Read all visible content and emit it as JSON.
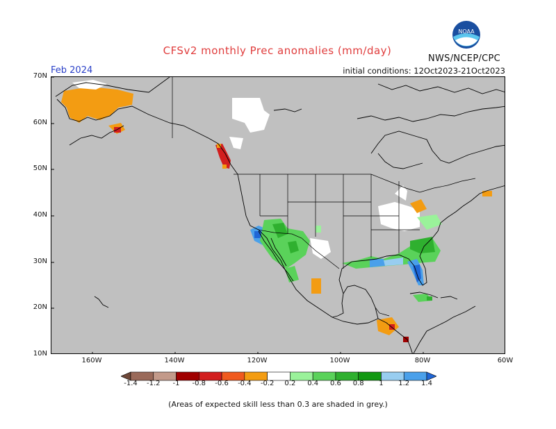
{
  "title": "CFSv2 monthly Prec anomalies (mm/day)",
  "period": "Feb 2024",
  "initial_conditions": "initial conditions: 12Oct2023-21Oct2023",
  "agency": "NWS/NCEP/CPC",
  "logo_text": "NOAA",
  "footnote": "(Areas of expected skill less than 0.3 are shaded in grey.)",
  "map": {
    "lat_labels": [
      "70N",
      "60N",
      "50N",
      "40N",
      "30N",
      "20N",
      "10N"
    ],
    "lon_labels": [
      "160W",
      "140W",
      "120W",
      "100W",
      "80W",
      "60W"
    ],
    "lat_range": [
      10,
      70
    ],
    "lon_range": [
      -170,
      -60
    ],
    "colors": {
      "skill_mask_grey": "#c0c0c0",
      "coast": "#000000"
    }
  },
  "colorbar": {
    "labels": [
      "-1.4",
      "-1.2",
      "-1",
      "-0.8",
      "-0.6",
      "-0.4",
      "-0.2",
      "0.2",
      "0.4",
      "0.6",
      "0.8",
      "1",
      "1.2",
      "1.4"
    ],
    "colors": [
      "#6e4838",
      "#9a6a5a",
      "#c39a8a",
      "#a00000",
      "#d21e1e",
      "#f05a1e",
      "#f39c12",
      "#ffffff",
      "#9af29a",
      "#5ad25a",
      "#2fb02f",
      "#129812",
      "#98cdf0",
      "#4aa0ea",
      "#1f66d6"
    ]
  },
  "anomaly_regions": [
    {
      "region": "Alaska",
      "anomaly": "-0.4 to -0.2"
    },
    {
      "region": "SE Alaska / BC coast",
      "anomaly": "-0.8 to -0.4"
    },
    {
      "region": "Yukon / NW Canada",
      "anomaly": "-0.2 to 0.2"
    },
    {
      "region": "Southern California / Baja",
      "anomaly": "0.4 to 1.4"
    },
    {
      "region": "Arizona / New Mexico / NW Mexico",
      "anomaly": "0.4 to 0.8"
    },
    {
      "region": "Gulf Coast / Southeast US",
      "anomaly": "0.4 to 1.4"
    },
    {
      "region": "Florida",
      "anomaly": "1.0 to 1.4"
    },
    {
      "region": "Ohio Valley / Great Lakes",
      "anomaly": "-0.2 to 0.2"
    },
    {
      "region": "Lower Great Lakes",
      "anomaly": "-0.4 to -0.2"
    },
    {
      "region": "Central America",
      "anomaly": "-0.6 to -0.2"
    },
    {
      "region": "Cuba / Hispaniola",
      "anomaly": "0.2 to 0.8"
    }
  ]
}
